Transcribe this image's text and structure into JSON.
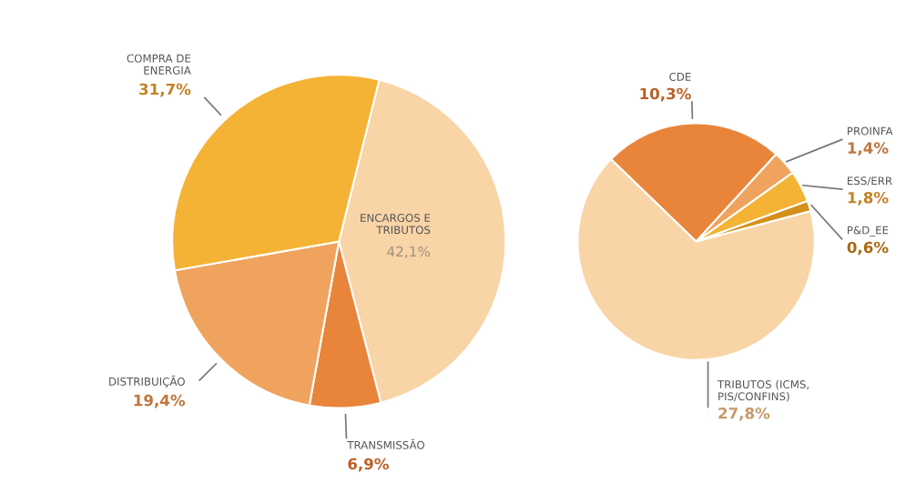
{
  "chart_data": [
    {
      "type": "pie",
      "categories": [
        "ENCARGOS E\nTRIBUTOS",
        "TRANSMISSÃO",
        "DISTRIBUIÇÃO",
        "COMPRA DE\nENERGIA"
      ],
      "values": [
        42.1,
        6.9,
        19.4,
        31.7
      ],
      "colors": [
        "#f9d4a6",
        "#e8853b",
        "#f0a35e",
        "#f5b335"
      ],
      "value_labels": [
        "42,1%",
        "6,9%",
        "19,4%",
        "31,7%"
      ]
    },
    {
      "type": "pie",
      "categories": [
        "CDE",
        "PROINFA",
        "ESS/ERR",
        "P&D_EE",
        "TRIBUTOS (ICMS,\nPIS/CONFINS)"
      ],
      "values": [
        10.3,
        1.4,
        1.8,
        0.6,
        27.8
      ],
      "colors": [
        "#e8853b",
        "#f0a35e",
        "#f5b335",
        "#d4901a",
        "#f9d4a6"
      ],
      "value_labels": [
        "10,3%",
        "1,4%",
        "1,8%",
        "0,6%",
        "27,8%"
      ]
    }
  ]
}
